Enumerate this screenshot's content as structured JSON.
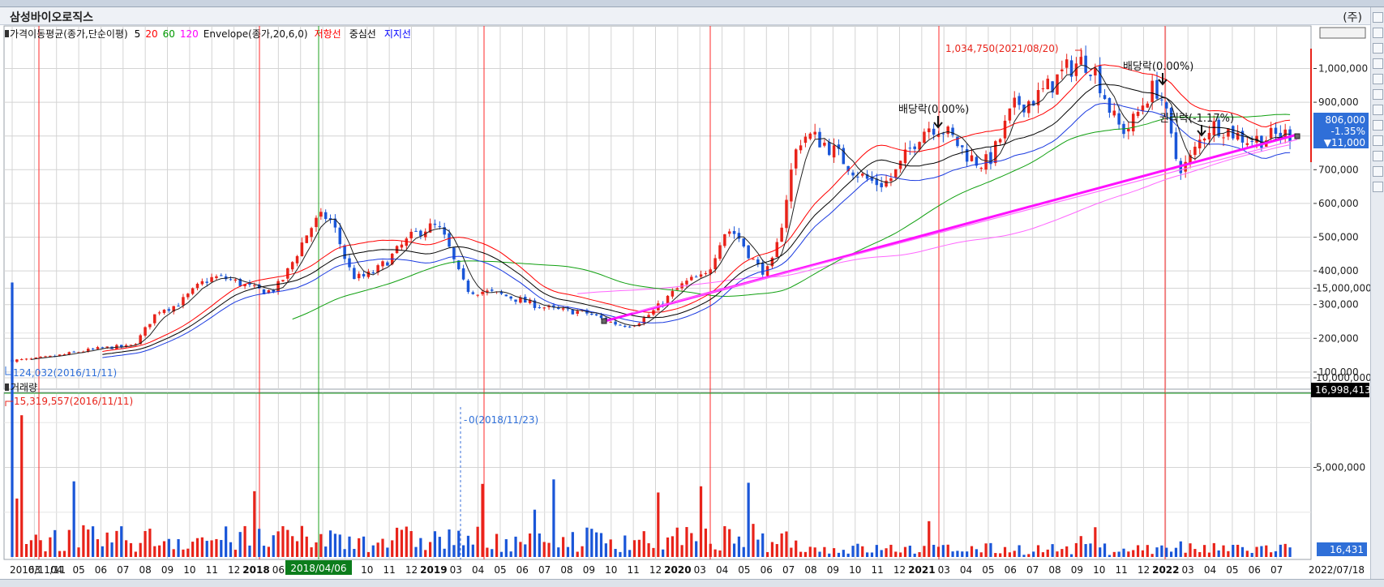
{
  "window": {
    "title": "삼성바이오로직스",
    "ju_label": "(주)"
  },
  "legend": {
    "ma_label": "가격이동평균(종가,단순이평)",
    "ma_periods": [
      {
        "label": "5",
        "color": "#000000"
      },
      {
        "label": "20",
        "color": "#ff0000"
      },
      {
        "label": "60",
        "color": "#009900"
      },
      {
        "label": "120",
        "color": "#ff00ff"
      }
    ],
    "envelope_label": "Envelope(종가,20,6,0)",
    "envelope_lines": [
      {
        "label": "저항선",
        "color": "#ff0000"
      },
      {
        "label": "중심선",
        "color": "#000000"
      },
      {
        "label": "지지선",
        "color": "#0000ff"
      }
    ]
  },
  "volume_label": "거래량",
  "annotations": {
    "high": "1,034,750(2021/08/20)",
    "low": "124,032(2016/11/11)",
    "vol_max": "15,319,557(2016/11/11)",
    "vol_zero": "0(2018/11/23)",
    "div1": "배당락(0.00%)",
    "div2": "배당락(0.00%)",
    "div3": "권리락(-1.17%)"
  },
  "current": {
    "price": "806,000",
    "change_pct": "-1.35%",
    "change": "▼11,000",
    "volume_top": "16,998,413",
    "volume_now": "16,431"
  },
  "end_date": "2022/07/18",
  "highlight_date": "2018/04/06",
  "chart_data": {
    "type": "candlestick",
    "x_labels": [
      "2016/11/11",
      "03",
      "04",
      "05",
      "06",
      "07",
      "08",
      "09",
      "10",
      "11",
      "12",
      "2018",
      "06",
      "07",
      "08",
      "09",
      "10",
      "11",
      "12",
      "2019",
      "03",
      "04",
      "05",
      "06",
      "07",
      "08",
      "09",
      "10",
      "11",
      "12",
      "2020",
      "03",
      "04",
      "05",
      "06",
      "07",
      "08",
      "09",
      "10",
      "11",
      "12",
      "2021",
      "03",
      "04",
      "05",
      "06",
      "07",
      "08",
      "09",
      "10",
      "11",
      "12",
      "2022",
      "03",
      "04",
      "05",
      "06",
      "07"
    ],
    "price_axis": {
      "labels": [
        "1,000,000",
        "900,000",
        "800,000",
        "700,000",
        "600,000",
        "500,000",
        "400,000",
        "300,000",
        "200,000",
        "100,000"
      ],
      "values": [
        1000000,
        900000,
        800000,
        700000,
        600000,
        500000,
        400000,
        300000,
        200000,
        100000
      ]
    },
    "volume_axis": {
      "labels": [
        "15,000,000",
        "10,000,000",
        "5,000,000"
      ],
      "values": [
        15000000,
        10000000,
        5000000
      ]
    },
    "price_keypoints": [
      {
        "t": 0,
        "p": 135000
      },
      {
        "t": 0.09,
        "p": 175000
      },
      {
        "t": 0.12,
        "p": 290000
      },
      {
        "t": 0.16,
        "p": 380000
      },
      {
        "t": 0.2,
        "p": 340000
      },
      {
        "t": 0.245,
        "p": 560000
      },
      {
        "t": 0.27,
        "p": 380000
      },
      {
        "t": 0.33,
        "p": 530000
      },
      {
        "t": 0.36,
        "p": 340000
      },
      {
        "t": 0.44,
        "p": 280000
      },
      {
        "t": 0.48,
        "p": 240000
      },
      {
        "t": 0.54,
        "p": 380000
      },
      {
        "t": 0.56,
        "p": 520000
      },
      {
        "t": 0.59,
        "p": 400000
      },
      {
        "t": 0.62,
        "p": 800000
      },
      {
        "t": 0.68,
        "p": 660000
      },
      {
        "t": 0.72,
        "p": 830000
      },
      {
        "t": 0.76,
        "p": 720000
      },
      {
        "t": 0.79,
        "p": 900000
      },
      {
        "t": 0.84,
        "p": 1020000
      },
      {
        "t": 0.87,
        "p": 820000
      },
      {
        "t": 0.895,
        "p": 940000
      },
      {
        "t": 0.915,
        "p": 710000
      },
      {
        "t": 0.94,
        "p": 830000
      },
      {
        "t": 0.97,
        "p": 790000
      },
      {
        "t": 1.0,
        "p": 806000
      }
    ]
  }
}
